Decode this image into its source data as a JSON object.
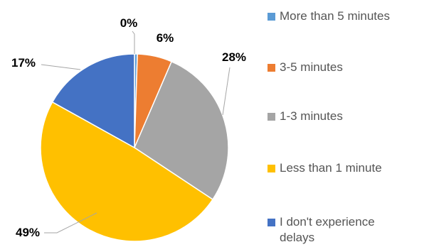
{
  "chart_data": {
    "type": "pie",
    "title": "",
    "slices": [
      {
        "label": "More than 5 minutes",
        "value": 0.5,
        "display": "0%",
        "color": "#5B9BD5"
      },
      {
        "label": "3-5 minutes",
        "value": 6,
        "display": "6%",
        "color": "#ED7D31"
      },
      {
        "label": "1-3 minutes",
        "value": 28,
        "display": "28%",
        "color": "#A5A5A5"
      },
      {
        "label": "Less than 1 minute",
        "value": 49,
        "display": "49%",
        "color": "#FFC000"
      },
      {
        "label": "I don't experience delays",
        "value": 17,
        "display": "17%",
        "color": "#4472C4"
      }
    ],
    "legend_position": "right"
  }
}
